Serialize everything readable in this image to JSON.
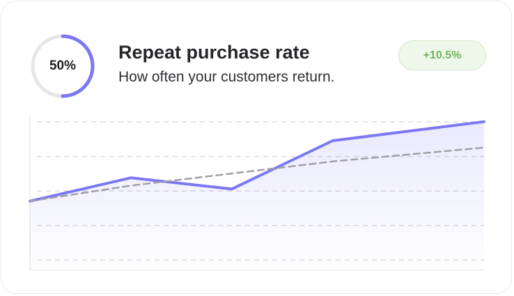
{
  "card": {
    "gauge": {
      "label": "50%",
      "value": 0.5,
      "color": "#7b78f2",
      "track_color": "#e6e6e9"
    },
    "title": "Repeat purchase rate",
    "subtitle": "How often your customers return.",
    "badge": {
      "label": "+10.5%",
      "color": "#6fb35c"
    }
  },
  "chart_data": {
    "type": "area",
    "title": "",
    "xlabel": "",
    "ylabel": "",
    "grid": true,
    "x": [
      0,
      1,
      2,
      3,
      4.5
    ],
    "ylim": [
      0,
      10
    ],
    "series": [
      {
        "values": [
          4.0,
          5.35,
          4.7,
          7.5,
          8.6
        ],
        "color": "#7b78f2",
        "fill": true
      },
      {
        "values": [
          4.0,
          4.9,
          5.6,
          6.3,
          7.1
        ],
        "color": "#a0a0a6",
        "dashed": true
      }
    ]
  }
}
